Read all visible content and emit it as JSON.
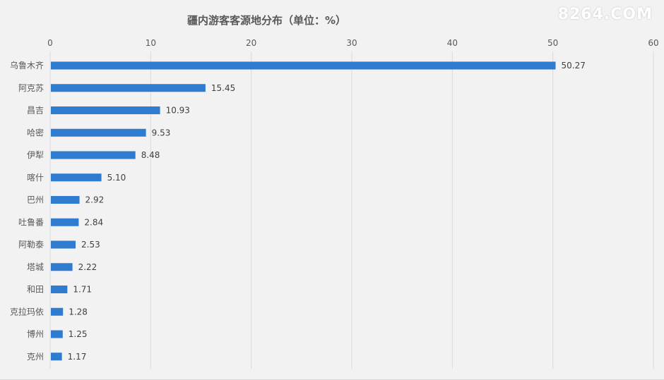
{
  "watermark": "8264.COM",
  "chart_data": {
    "type": "bar",
    "orientation": "horizontal",
    "title": "疆内游客客源地分布（单位：%）",
    "xlabel": "",
    "ylabel": "",
    "xlim": [
      0,
      60
    ],
    "xticks": [
      0,
      10,
      20,
      30,
      40,
      50,
      60
    ],
    "axis_position": "top",
    "grid": true,
    "legend": "none",
    "bar_color": "#2e7bcf",
    "categories": [
      "乌鲁木齐",
      "阿克苏",
      "昌吉",
      "哈密",
      "伊犁",
      "喀什",
      "巴州",
      "吐鲁番",
      "阿勒泰",
      "塔城",
      "和田",
      "克拉玛依",
      "博州",
      "克州"
    ],
    "values": [
      50.27,
      15.45,
      10.93,
      9.53,
      8.48,
      5.1,
      2.92,
      2.84,
      2.53,
      2.22,
      1.71,
      1.28,
      1.25,
      1.17
    ],
    "value_labels": [
      "50.27",
      "15.45",
      "10.93",
      "9.53",
      "8.48",
      "5.10",
      "2.92",
      "2.84",
      "2.53",
      "2.22",
      "1.71",
      "1.28",
      "1.25",
      "1.17"
    ]
  }
}
